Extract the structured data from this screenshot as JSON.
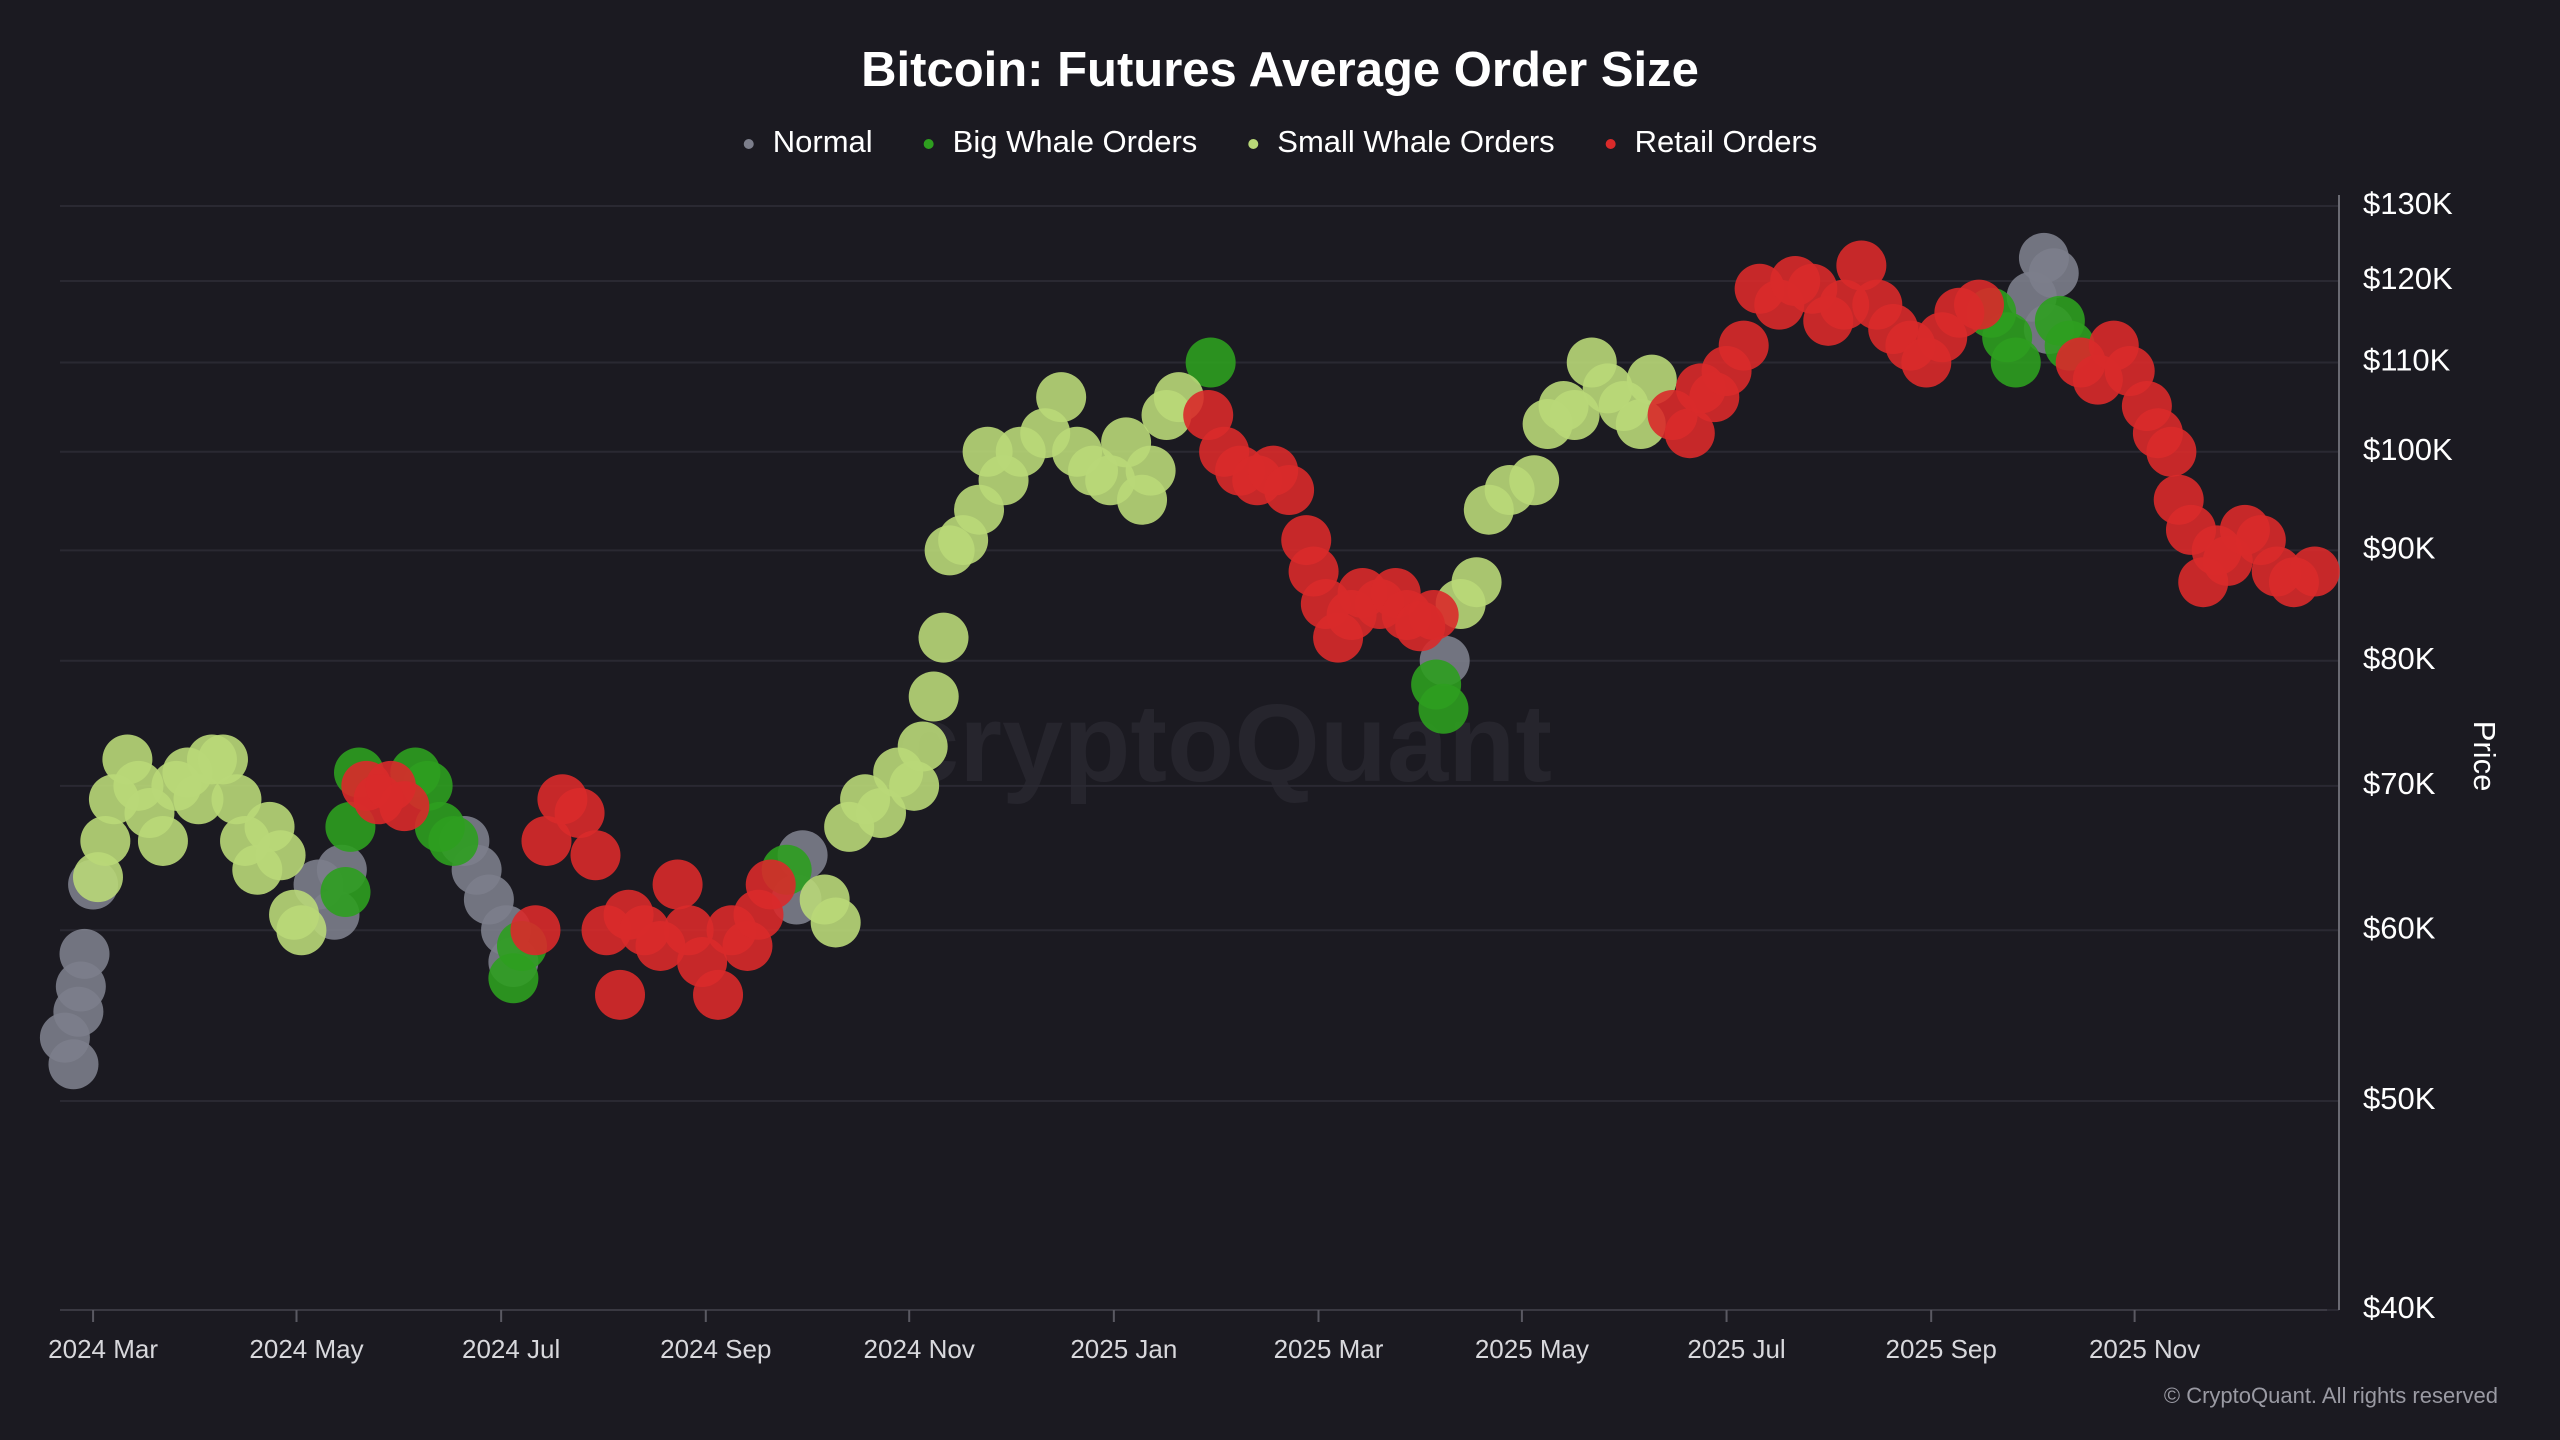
{
  "chart_data": {
    "type": "scatter",
    "title": "Bitcoin: Futures Average Order Size",
    "y_label": "Price",
    "watermark": "cryptoQuant",
    "copyright": "© CryptoQuant. All rights reserved",
    "log_y": true,
    "grid": true,
    "legend": "top",
    "xlim": [
      2024.14,
      2025.99
    ],
    "xticks": [
      {
        "value": 2024.167,
        "label": "2024 Mar"
      },
      {
        "value": 2024.333,
        "label": "2024 May"
      },
      {
        "value": 2024.5,
        "label": "2024 Jul"
      },
      {
        "value": 2024.667,
        "label": "2024 Sep"
      },
      {
        "value": 2024.833,
        "label": "2024 Nov"
      },
      {
        "value": 2025.0,
        "label": "2025 Jan"
      },
      {
        "value": 2025.167,
        "label": "2025 Mar"
      },
      {
        "value": 2025.333,
        "label": "2025 May"
      },
      {
        "value": 2025.5,
        "label": "2025 Jul"
      },
      {
        "value": 2025.667,
        "label": "2025 Sep"
      },
      {
        "value": 2025.833,
        "label": "2025 Nov"
      }
    ],
    "ylim": [
      40000,
      130000
    ],
    "yticks": [
      {
        "value": 40000,
        "label": "$40K"
      },
      {
        "value": 50000,
        "label": "$50K"
      },
      {
        "value": 60000,
        "label": "$60K"
      },
      {
        "value": 70000,
        "label": "$70K"
      },
      {
        "value": 80000,
        "label": "$80K"
      },
      {
        "value": 90000,
        "label": "$90K"
      },
      {
        "value": 100000,
        "label": "$100K"
      },
      {
        "value": 110000,
        "label": "$110K"
      },
      {
        "value": 120000,
        "label": "$120K"
      },
      {
        "value": 130000,
        "label": "$130K"
      }
    ],
    "series": [
      {
        "name": "Normal",
        "color": "#7c7e8b",
        "x": [
          2024.144,
          2024.151,
          2024.155,
          2024.157,
          2024.16,
          2024.167,
          2024.351,
          2024.364,
          2024.37,
          2024.47,
          2024.48,
          2024.49,
          2024.504,
          2024.51,
          2024.741,
          2024.746,
          2025.27,
          2025.749,
          2025.759,
          2025.763,
          2025.767
        ],
        "values": [
          53500,
          52000,
          55000,
          56500,
          58500,
          63000,
          63000,
          61000,
          64000,
          66000,
          64000,
          62000,
          60000,
          58000,
          62000,
          65000,
          80000,
          118000,
          123000,
          114000,
          121000
        ]
      },
      {
        "name": "Big Whale Orders",
        "color": "#2e9e1f",
        "x": [
          2024.373,
          2024.377,
          2024.384,
          2024.43,
          2024.44,
          2024.45,
          2024.461,
          2024.51,
          2024.517,
          2024.733,
          2025.079,
          2025.263,
          2025.269,
          2025.716,
          2025.729,
          2025.736,
          2025.772,
          2025.78
        ],
        "values": [
          62500,
          67000,
          71000,
          71000,
          70000,
          67000,
          66000,
          57000,
          59000,
          64000,
          110000,
          78000,
          76000,
          116000,
          113000,
          110000,
          115000,
          112000
        ]
      },
      {
        "name": "Small Whale Orders",
        "color": "#b9d878",
        "x": [
          2024.171,
          2024.177,
          2024.184,
          2024.195,
          2024.204,
          2024.213,
          2024.224,
          2024.235,
          2024.244,
          2024.253,
          2024.264,
          2024.273,
          2024.284,
          2024.291,
          2024.301,
          2024.311,
          2024.32,
          2024.331,
          2024.337,
          2024.764,
          2024.773,
          2024.784,
          2024.797,
          2024.81,
          2024.824,
          2024.837,
          2024.844,
          2024.853,
          2024.861,
          2024.866,
          2024.877,
          2024.89,
          2024.897,
          2024.91,
          2024.924,
          2024.944,
          2024.957,
          2024.97,
          2024.983,
          2024.997,
          2025.01,
          2025.023,
          2025.03,
          2025.043,
          2025.053,
          2025.283,
          2025.296,
          2025.306,
          2025.323,
          2025.343,
          2025.354,
          2025.367,
          2025.376,
          2025.39,
          2025.403,
          2025.416,
          2025.43,
          2025.439
        ],
        "values": [
          63500,
          66000,
          69000,
          72000,
          70000,
          68000,
          66000,
          70000,
          71000,
          69000,
          72000,
          72000,
          69000,
          66000,
          64000,
          67000,
          65000,
          61000,
          60000,
          62000,
          60500,
          67000,
          69000,
          68000,
          71000,
          70000,
          73000,
          77000,
          82000,
          90000,
          91000,
          94000,
          100000,
          97000,
          100000,
          102000,
          106000,
          100000,
          98000,
          97000,
          101000,
          95000,
          98000,
          104000,
          106000,
          85000,
          87000,
          94000,
          96000,
          97000,
          103000,
          105000,
          104000,
          110000,
          107000,
          105000,
          103000,
          108000
        ]
      },
      {
        "name": "Retail Orders",
        "color": "#d92a2a",
        "x": [
          2024.39,
          2024.4,
          2024.41,
          2024.421,
          2024.528,
          2024.537,
          2024.55,
          2024.564,
          2024.577,
          2024.586,
          2024.597,
          2024.604,
          2024.617,
          2024.63,
          2024.644,
          2024.653,
          2024.664,
          2024.677,
          2024.688,
          2024.701,
          2024.71,
          2024.72,
          2025.077,
          2025.09,
          2025.103,
          2025.117,
          2025.13,
          2025.143,
          2025.157,
          2025.163,
          2025.173,
          2025.183,
          2025.194,
          2025.203,
          2025.217,
          2025.23,
          2025.239,
          2025.25,
          2025.261,
          2025.456,
          2025.47,
          2025.479,
          2025.49,
          2025.5,
          2025.514,
          2025.527,
          2025.543,
          2025.556,
          2025.57,
          2025.583,
          2025.596,
          2025.61,
          2025.623,
          2025.636,
          2025.65,
          2025.663,
          2025.676,
          2025.69,
          2025.706,
          2025.789,
          2025.803,
          2025.816,
          2025.829,
          2025.843,
          2025.852,
          2025.863,
          2025.869,
          2025.879,
          2025.889,
          2025.9,
          2025.909,
          2025.923,
          2025.936,
          2025.949,
          2025.963,
          2025.98
        ],
        "values": [
          70000,
          69000,
          70000,
          68500,
          60000,
          66000,
          69000,
          68000,
          65000,
          60000,
          56000,
          61000,
          60000,
          59000,
          63000,
          60000,
          58000,
          56000,
          60000,
          59000,
          61000,
          63000,
          104000,
          100000,
          98000,
          97000,
          98000,
          96000,
          91000,
          88000,
          85000,
          82000,
          84000,
          86000,
          85000,
          86000,
          84000,
          83000,
          84000,
          104000,
          102000,
          107000,
          106000,
          109000,
          112000,
          119000,
          117000,
          120000,
          119000,
          115000,
          117000,
          122000,
          117000,
          114000,
          112000,
          110000,
          113000,
          116000,
          117000,
          110000,
          108000,
          112000,
          109000,
          105000,
          102000,
          100000,
          95000,
          92000,
          87000,
          90000,
          89000,
          92000,
          91000,
          88000,
          87000,
          88000
        ]
      }
    ]
  }
}
